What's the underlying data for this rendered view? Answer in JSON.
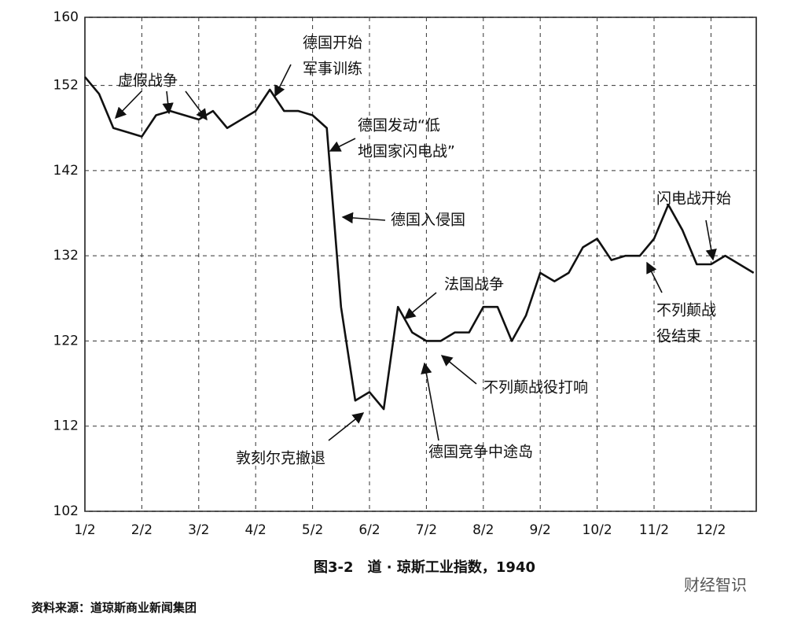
{
  "chart_data": {
    "type": "line",
    "caption": "图3-2　道 · 琼斯工业指数，1940",
    "source": "资料来源：道琼斯商业新闻集团",
    "watermark": "财经智识",
    "color": "#111111",
    "grid": true,
    "categories": [
      "1/2",
      null,
      null,
      null,
      "2/2",
      null,
      null,
      null,
      "3/2",
      null,
      null,
      null,
      "4/2",
      null,
      null,
      null,
      "5/2",
      null,
      null,
      null,
      "6/2",
      null,
      null,
      null,
      "7/2",
      null,
      null,
      null,
      "8/2",
      null,
      null,
      null,
      "9/2",
      null,
      null,
      null,
      "10/2",
      null,
      null,
      null,
      "11/2",
      null,
      null,
      null,
      "12/2",
      null,
      null,
      null
    ],
    "values": [
      153,
      151,
      147,
      146.5,
      146,
      148.5,
      149,
      148.5,
      148,
      149,
      147,
      148,
      149,
      151.5,
      149,
      149,
      148.5,
      147,
      126,
      115,
      116,
      114,
      126,
      123,
      122,
      122,
      123,
      123,
      126,
      126,
      122,
      125,
      130,
      129,
      130,
      133,
      134,
      131.5,
      132,
      132,
      134,
      138,
      135,
      131,
      131,
      132,
      131,
      130
    ],
    "ylim": [
      102,
      160
    ],
    "yticks": [
      102,
      112,
      122,
      132,
      142,
      152,
      160
    ],
    "annotations": [
      [
        "虚假战争"
      ],
      [
        "德国开始",
        "军事训练"
      ],
      [
        "德国发动“低",
        "地国家闪电战”"
      ],
      [
        "德国入侵国"
      ],
      [
        "法国战争"
      ],
      [
        "不列颠战役打响"
      ],
      [
        "德国竞争中途岛"
      ],
      [
        "敦刻尔克撤退"
      ],
      [
        "不列颠战",
        "役结束"
      ],
      [
        "闪电战开始"
      ]
    ]
  }
}
